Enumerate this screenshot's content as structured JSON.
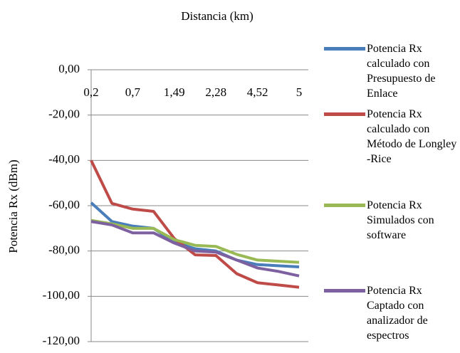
{
  "chart_data": {
    "type": "line",
    "title": "Distancia (km)",
    "y_label": "Potencia Rx (dBm)",
    "categories": [
      "0,2",
      null,
      "0,7",
      null,
      "1,49",
      null,
      "2,28",
      null,
      "4,52",
      null,
      "5"
    ],
    "series": [
      {
        "name": "Potencia Rx calculado con Presupuesto de Enlace",
        "color": "#4a7ebb",
        "values": [
          -58.7,
          -67,
          -69,
          -70,
          -76,
          -79,
          -80,
          -84,
          -86,
          -86.5,
          -87
        ]
      },
      {
        "name": "Potencia Rx calculado con Método de Longley -Rice",
        "color": "#be4b48",
        "values": [
          -40,
          -59,
          -61.5,
          -62.5,
          -74.5,
          -81.7,
          -82,
          -90,
          -94,
          -95,
          -96
        ]
      },
      {
        "name": "Potencia Rx Simulados con software",
        "color": "#98b954",
        "values": [
          -66.5,
          -68,
          -70,
          -70,
          -75,
          -77.5,
          -78,
          -81.5,
          -84,
          -84.5,
          -85
        ]
      },
      {
        "name": "Potencia Rx Captado con analizador de espectros",
        "color": "#7d60a0",
        "values": [
          -67,
          -68.5,
          -72,
          -72,
          -76.5,
          -80,
          -80.5,
          -84,
          -87.5,
          -89,
          -91
        ]
      }
    ],
    "ylim": [
      -120,
      0
    ],
    "yticks": [
      {
        "value": 0,
        "label": "0,00"
      },
      {
        "value": -20,
        "label": "-20,00"
      },
      {
        "value": -40,
        "label": "-40,00"
      },
      {
        "value": -60,
        "label": "-60,00"
      },
      {
        "value": -80,
        "label": "-80,00"
      },
      {
        "value": -100,
        "label": "-100,00"
      },
      {
        "value": -120,
        "label": "-120,00"
      }
    ],
    "grid": true,
    "legend": "right"
  }
}
